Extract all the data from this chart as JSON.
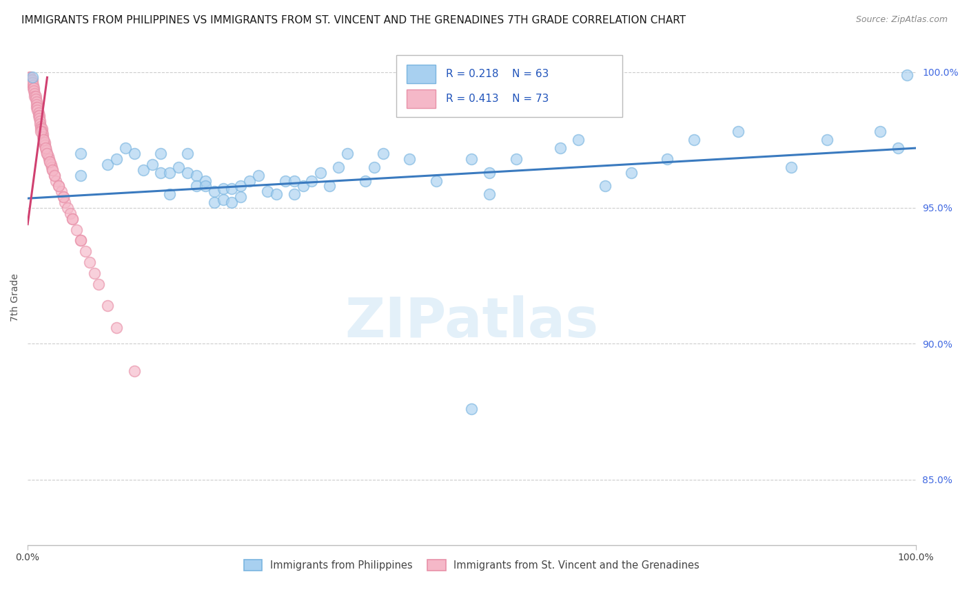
{
  "title": "IMMIGRANTS FROM PHILIPPINES VS IMMIGRANTS FROM ST. VINCENT AND THE GRENADINES 7TH GRADE CORRELATION CHART",
  "source": "Source: ZipAtlas.com",
  "ylabel": "7th Grade",
  "watermark": "ZIPatlas",
  "legend_entries": [
    {
      "label": "Immigrants from Philippines",
      "color": "#a8d0f0",
      "edge": "#7ab5e0",
      "R": "0.218",
      "N": "63"
    },
    {
      "label": "Immigrants from St. Vincent and the Grenadines",
      "color": "#f5b8c8",
      "edge": "#e890a8",
      "R": "0.413",
      "N": "73"
    }
  ],
  "blue_scatter_x": [
    0.005,
    0.06,
    0.06,
    0.09,
    0.1,
    0.11,
    0.12,
    0.13,
    0.14,
    0.15,
    0.15,
    0.16,
    0.16,
    0.17,
    0.18,
    0.18,
    0.19,
    0.19,
    0.2,
    0.2,
    0.21,
    0.21,
    0.22,
    0.22,
    0.23,
    0.23,
    0.24,
    0.24,
    0.25,
    0.26,
    0.27,
    0.28,
    0.29,
    0.3,
    0.3,
    0.31,
    0.32,
    0.33,
    0.34,
    0.35,
    0.36,
    0.38,
    0.39,
    0.4,
    0.43,
    0.46,
    0.5,
    0.52,
    0.52,
    0.55,
    0.6,
    0.62,
    0.65,
    0.68,
    0.72,
    0.75,
    0.8,
    0.86,
    0.9,
    0.96,
    0.98,
    0.99,
    0.5
  ],
  "blue_scatter_y": [
    0.998,
    0.97,
    0.962,
    0.966,
    0.968,
    0.972,
    0.97,
    0.964,
    0.966,
    0.97,
    0.963,
    0.963,
    0.955,
    0.965,
    0.97,
    0.963,
    0.962,
    0.958,
    0.96,
    0.958,
    0.956,
    0.952,
    0.957,
    0.953,
    0.957,
    0.952,
    0.958,
    0.954,
    0.96,
    0.962,
    0.956,
    0.955,
    0.96,
    0.96,
    0.955,
    0.958,
    0.96,
    0.963,
    0.958,
    0.965,
    0.97,
    0.96,
    0.965,
    0.97,
    0.968,
    0.96,
    0.968,
    0.963,
    0.955,
    0.968,
    0.972,
    0.975,
    0.958,
    0.963,
    0.968,
    0.975,
    0.978,
    0.965,
    0.975,
    0.978,
    0.972,
    0.999,
    0.876
  ],
  "pink_scatter_x": [
    0.002,
    0.003,
    0.004,
    0.004,
    0.005,
    0.005,
    0.006,
    0.006,
    0.007,
    0.007,
    0.008,
    0.008,
    0.009,
    0.009,
    0.01,
    0.01,
    0.01,
    0.011,
    0.011,
    0.012,
    0.012,
    0.013,
    0.013,
    0.014,
    0.014,
    0.015,
    0.015,
    0.016,
    0.016,
    0.017,
    0.017,
    0.018,
    0.018,
    0.019,
    0.019,
    0.02,
    0.021,
    0.022,
    0.023,
    0.024,
    0.025,
    0.026,
    0.027,
    0.028,
    0.03,
    0.032,
    0.035,
    0.038,
    0.04,
    0.042,
    0.045,
    0.048,
    0.05,
    0.055,
    0.06,
    0.065,
    0.07,
    0.075,
    0.08,
    0.09,
    0.1,
    0.12,
    0.015,
    0.018,
    0.02,
    0.022,
    0.025,
    0.028,
    0.03,
    0.035,
    0.04,
    0.05,
    0.06
  ],
  "pink_scatter_y": [
    0.998,
    0.998,
    0.997,
    0.996,
    0.997,
    0.996,
    0.995,
    0.994,
    0.994,
    0.993,
    0.992,
    0.991,
    0.991,
    0.99,
    0.989,
    0.988,
    0.987,
    0.987,
    0.986,
    0.985,
    0.984,
    0.984,
    0.983,
    0.982,
    0.981,
    0.98,
    0.979,
    0.979,
    0.978,
    0.977,
    0.976,
    0.975,
    0.974,
    0.974,
    0.973,
    0.972,
    0.971,
    0.97,
    0.969,
    0.968,
    0.967,
    0.966,
    0.965,
    0.964,
    0.962,
    0.96,
    0.958,
    0.956,
    0.954,
    0.952,
    0.95,
    0.948,
    0.946,
    0.942,
    0.938,
    0.934,
    0.93,
    0.926,
    0.922,
    0.914,
    0.906,
    0.89,
    0.978,
    0.975,
    0.972,
    0.97,
    0.967,
    0.964,
    0.962,
    0.958,
    0.954,
    0.946,
    0.938
  ],
  "blue_line_x": [
    0.0,
    1.0
  ],
  "blue_line_y": [
    0.9535,
    0.972
  ],
  "pink_line_x": [
    0.0,
    0.022
  ],
  "pink_line_y": [
    0.944,
    0.998
  ],
  "xlim": [
    0.0,
    1.0
  ],
  "ylim": [
    0.826,
    1.008
  ],
  "yticks": [
    0.85,
    0.9,
    0.95,
    1.0
  ],
  "ytick_labels": [
    "85.0%",
    "90.0%",
    "95.0%",
    "100.0%"
  ],
  "xticks": [
    0.0,
    1.0
  ],
  "xtick_labels": [
    "0.0%",
    "100.0%"
  ],
  "grid_color": "#cccccc",
  "blue_dot_color": "#a8d0f0",
  "blue_dot_edge": "#7ab5e0",
  "pink_dot_color": "#f5b8c8",
  "pink_dot_edge": "#e890a8",
  "blue_line_color": "#3a7abf",
  "pink_line_color": "#d04070",
  "title_fontsize": 11,
  "axis_label_fontsize": 10,
  "tick_fontsize": 10,
  "source_text": "Source: ZipAtlas.com"
}
